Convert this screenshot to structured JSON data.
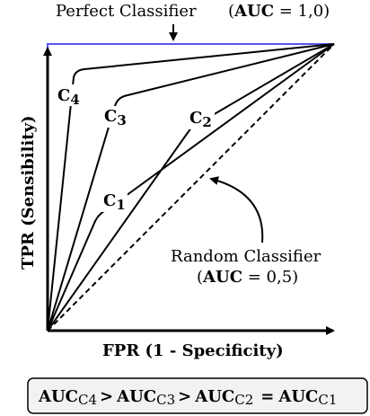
{
  "top_label": {
    "text": "Perfect Classifier",
    "auc_prefix": "(",
    "auc_bold": "AUC",
    "auc_value": " = 1,0)"
  },
  "random_label": {
    "line1": "Random Classifier",
    "auc_prefix": "(",
    "auc_bold": "AUC",
    "auc_value": " = 0,5)"
  },
  "axes": {
    "y_label": "TPR (Sensibility)",
    "x_label": "FPR (1 - Specificity)"
  },
  "curves": [
    {
      "main": "C",
      "sub": "4"
    },
    {
      "main": "C",
      "sub": "3"
    },
    {
      "main": "C",
      "sub": "2"
    },
    {
      "main": "C",
      "sub": "1"
    }
  ],
  "formula": {
    "auc": "AUC",
    "c4": "C4",
    "c3": "C3",
    "c2": "C2",
    "c1": "C1",
    "gt": ">",
    "eq": "="
  },
  "colors": {
    "perfect": "#5555ee",
    "line": "#000000",
    "box_bg": "#f2f2f2"
  }
}
